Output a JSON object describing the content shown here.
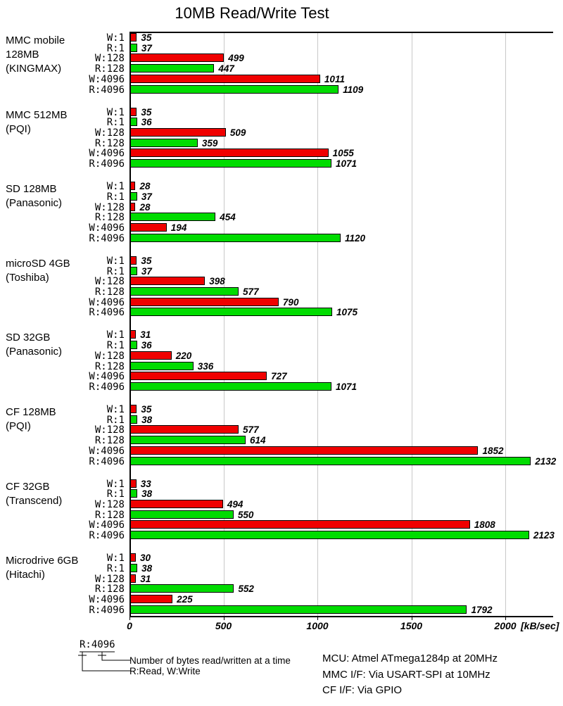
{
  "title": "10MB Read/Write Test",
  "chart_data": {
    "type": "bar",
    "orientation": "horizontal",
    "title": "10MB Read/Write Test",
    "xlabel": "[kB/sec]",
    "xlim": [
      0,
      2255
    ],
    "x_ticks": [
      0,
      500,
      1000,
      1500,
      2000
    ],
    "grid": "vertical-gray",
    "row_labels": [
      "W:1",
      "R:1",
      "W:128",
      "R:128",
      "W:4096",
      "R:4096"
    ],
    "colors": {
      "write": "#f00000",
      "read": "#00dc00",
      "bar_border": "#000000",
      "gridline": "#c8c8c8"
    },
    "groups": [
      {
        "label_lines": [
          "MMC mobile",
          "128MB",
          "(KINGMAX)"
        ],
        "values": [
          35,
          37,
          499,
          447,
          1011,
          1109
        ]
      },
      {
        "label_lines": [
          "MMC 512MB",
          "(PQI)"
        ],
        "values": [
          35,
          36,
          509,
          359,
          1055,
          1071
        ]
      },
      {
        "label_lines": [
          "SD 128MB",
          "(Panasonic)"
        ],
        "values": [
          28,
          37,
          28,
          454,
          194,
          1120
        ]
      },
      {
        "label_lines": [
          "microSD 4GB",
          "(Toshiba)"
        ],
        "values": [
          35,
          37,
          398,
          577,
          790,
          1075
        ]
      },
      {
        "label_lines": [
          "SD 32GB",
          "(Panasonic)"
        ],
        "values": [
          31,
          36,
          220,
          336,
          727,
          1071
        ]
      },
      {
        "label_lines": [
          "CF 128MB",
          "(PQI)"
        ],
        "values": [
          35,
          38,
          577,
          614,
          1852,
          2132
        ]
      },
      {
        "label_lines": [
          "CF 32GB",
          "(Transcend)"
        ],
        "values": [
          33,
          38,
          494,
          550,
          1808,
          2123
        ]
      },
      {
        "label_lines": [
          "Microdrive 6GB",
          "(Hitachi)"
        ],
        "values": [
          30,
          38,
          31,
          552,
          225,
          1792
        ]
      }
    ]
  },
  "legend": {
    "key_example": "R:4096",
    "note1": "Number of bytes read/written at a time",
    "note2": "R:Read, W:Write"
  },
  "footer": {
    "lines": [
      "MCU: Atmel ATmega1284p at 20MHz",
      "MMC I/F: Via USART-SPI at 10MHz",
      "CF I/F: Via GPIO"
    ]
  }
}
